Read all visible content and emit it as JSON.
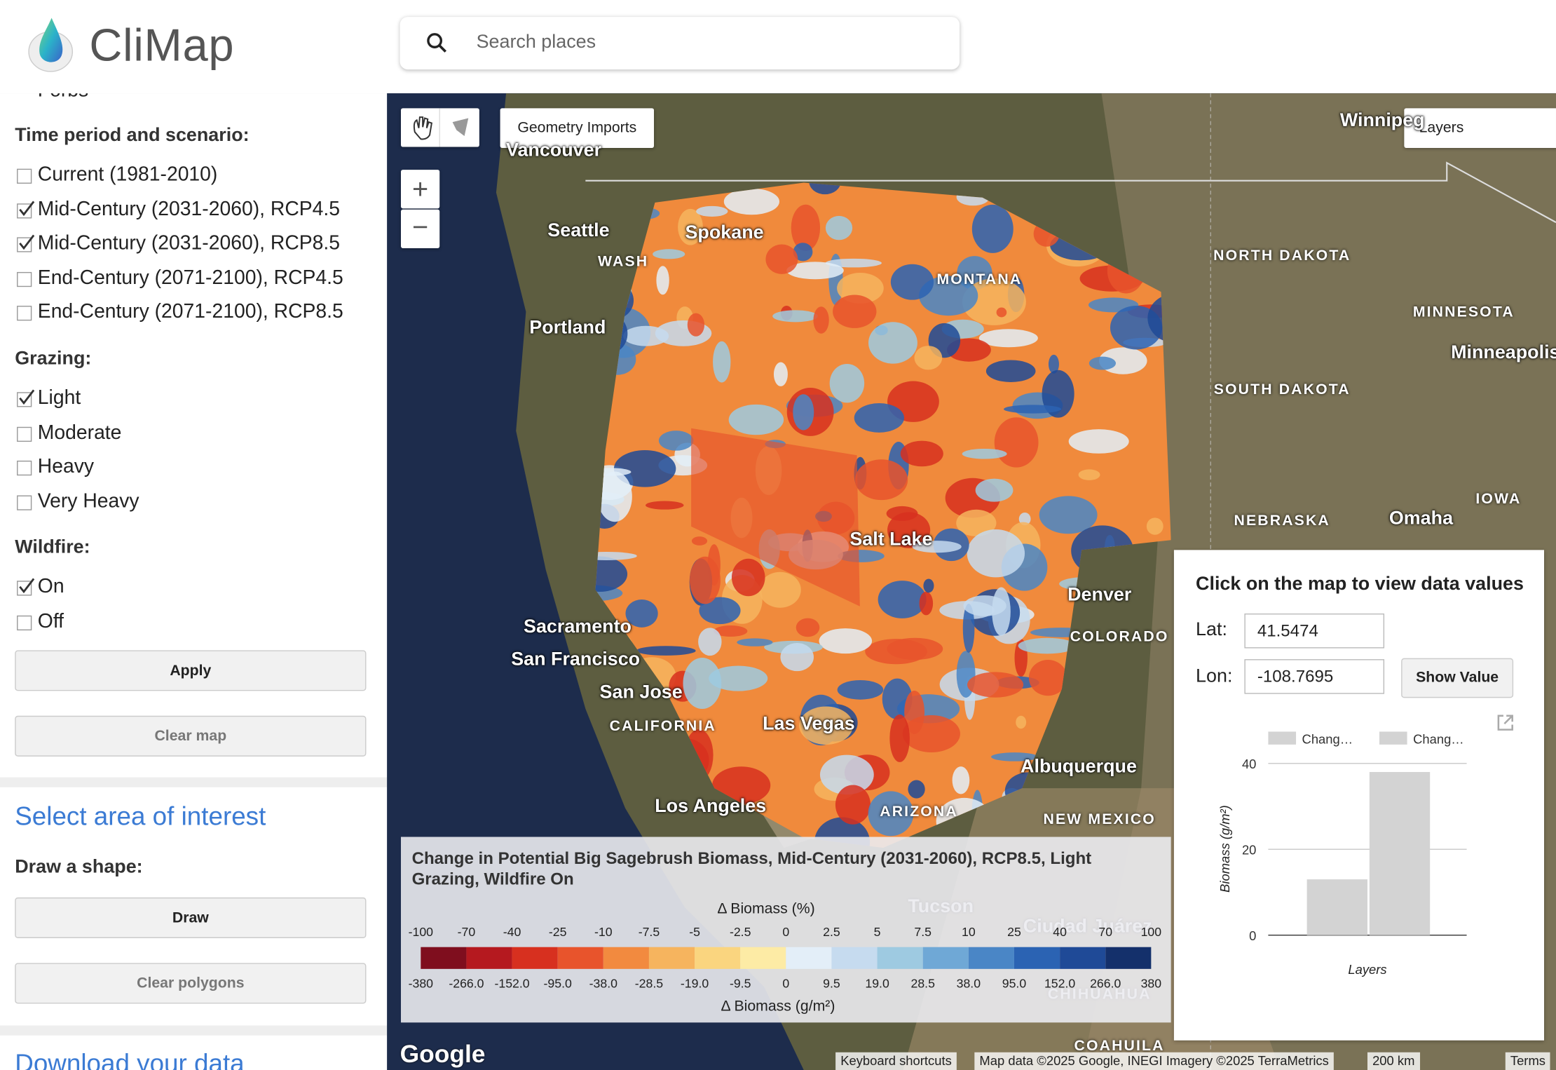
{
  "header": {
    "app_name": "CliMap",
    "search_placeholder": "Search places"
  },
  "sidebar": {
    "partial_item": "Forbs",
    "groups": [
      {
        "title": "Time period and scenario:",
        "options": [
          {
            "label": "Current (1981-2010)",
            "checked": false
          },
          {
            "label": "Mid-Century (2031-2060), RCP4.5",
            "checked": true
          },
          {
            "label": "Mid-Century (2031-2060), RCP8.5",
            "checked": true
          },
          {
            "label": "End-Century (2071-2100), RCP4.5",
            "checked": false
          },
          {
            "label": "End-Century (2071-2100), RCP8.5",
            "checked": false
          }
        ]
      },
      {
        "title": "Grazing:",
        "options": [
          {
            "label": "Light",
            "checked": true
          },
          {
            "label": "Moderate",
            "checked": false
          },
          {
            "label": "Heavy",
            "checked": false
          },
          {
            "label": "Very Heavy",
            "checked": false
          }
        ]
      },
      {
        "title": "Wildfire:",
        "options": [
          {
            "label": "On",
            "checked": true
          },
          {
            "label": "Off",
            "checked": false
          }
        ]
      }
    ],
    "apply": "Apply",
    "clear_map": "Clear map",
    "area_title": "Select area of interest",
    "draw_title": "Draw a shape:",
    "draw": "Draw",
    "clear_polygons": "Clear polygons",
    "download_title": "Download your data"
  },
  "map": {
    "geometry_imports": "Geometry Imports",
    "layers": "Layers",
    "zoom_in": "+",
    "zoom_out": "−",
    "labels": [
      "Vancouver",
      "Seattle",
      "WASH",
      "Portland",
      "Spokane",
      "MONTANA",
      "NORTH DAKOTA",
      "MINNESOTA",
      "Minneapolis",
      "SOUTH DAKOTA",
      "IOWA",
      "NEBRASKA",
      "Omaha",
      "Salt Lake",
      "Denver",
      "COLORADO",
      "Sacramento",
      "San Francisco",
      "San Jose",
      "CALIFORNIA",
      "Las Vegas",
      "Los Angeles",
      "ARIZONA",
      "Albuquerque",
      "NEW MEXICO",
      "Tucson",
      "Ciudad Juárez",
      "CHIHUAHUA",
      "COAHUILA",
      "Winnipeg"
    ],
    "legend": {
      "title": "Change in Potential Big Sagebrush Biomass, Mid-Century (2031-2060), RCP8.5, Light Grazing, Wildfire On",
      "percent_title": "Δ Biomass (%)",
      "absolute_title": "Δ Biomass (g/m²)",
      "percent_labels": [
        "-100",
        "-70",
        "-40",
        "-25",
        "-10",
        "-7.5",
        "-5",
        "-2.5",
        "0",
        "2.5",
        "5",
        "7.5",
        "10",
        "25",
        "40",
        "70",
        "100"
      ],
      "absolute_labels": [
        "-380",
        "-266.0",
        "-152.0",
        "-95.0",
        "-38.0",
        "-28.5",
        "-19.0",
        "-9.5",
        "0",
        "9.5",
        "19.0",
        "28.5",
        "38.0",
        "95.0",
        "152.0",
        "266.0",
        "380"
      ],
      "colors": [
        "#7f0e1e",
        "#b5191f",
        "#d7301f",
        "#e8542c",
        "#f28a3f",
        "#f6b45e",
        "#fad57f",
        "#fdeba5",
        "#e3eef8",
        "#c6dbef",
        "#9ecae1",
        "#6fa8d6",
        "#4a86c6",
        "#2b63b3",
        "#1f4a97",
        "#14306b"
      ]
    },
    "logo": "Google",
    "attribution": [
      "Keyboard shortcuts",
      "Map data ©2025 Google, INEGI Imagery ©2025 TerraMetrics",
      "200 km",
      "Terms"
    ]
  },
  "inspector": {
    "title": "Click on the map to view data values",
    "lat_label": "Lat:",
    "lat": "41.5474",
    "lon_label": "Lon:",
    "lon": "-108.7695",
    "show_value": "Show Value",
    "chart": {
      "type": "bar",
      "x_label": "Layers",
      "y_label": "Biomass (g/m²)",
      "ylim": [
        0,
        40
      ],
      "yticks": [
        0,
        20,
        40
      ],
      "series": [
        {
          "name": "Chang…",
          "color": "#d3d3d3",
          "values": [
            13
          ]
        },
        {
          "name": "Chang…",
          "color": "#d3d3d3",
          "values": [
            38
          ]
        }
      ]
    }
  }
}
